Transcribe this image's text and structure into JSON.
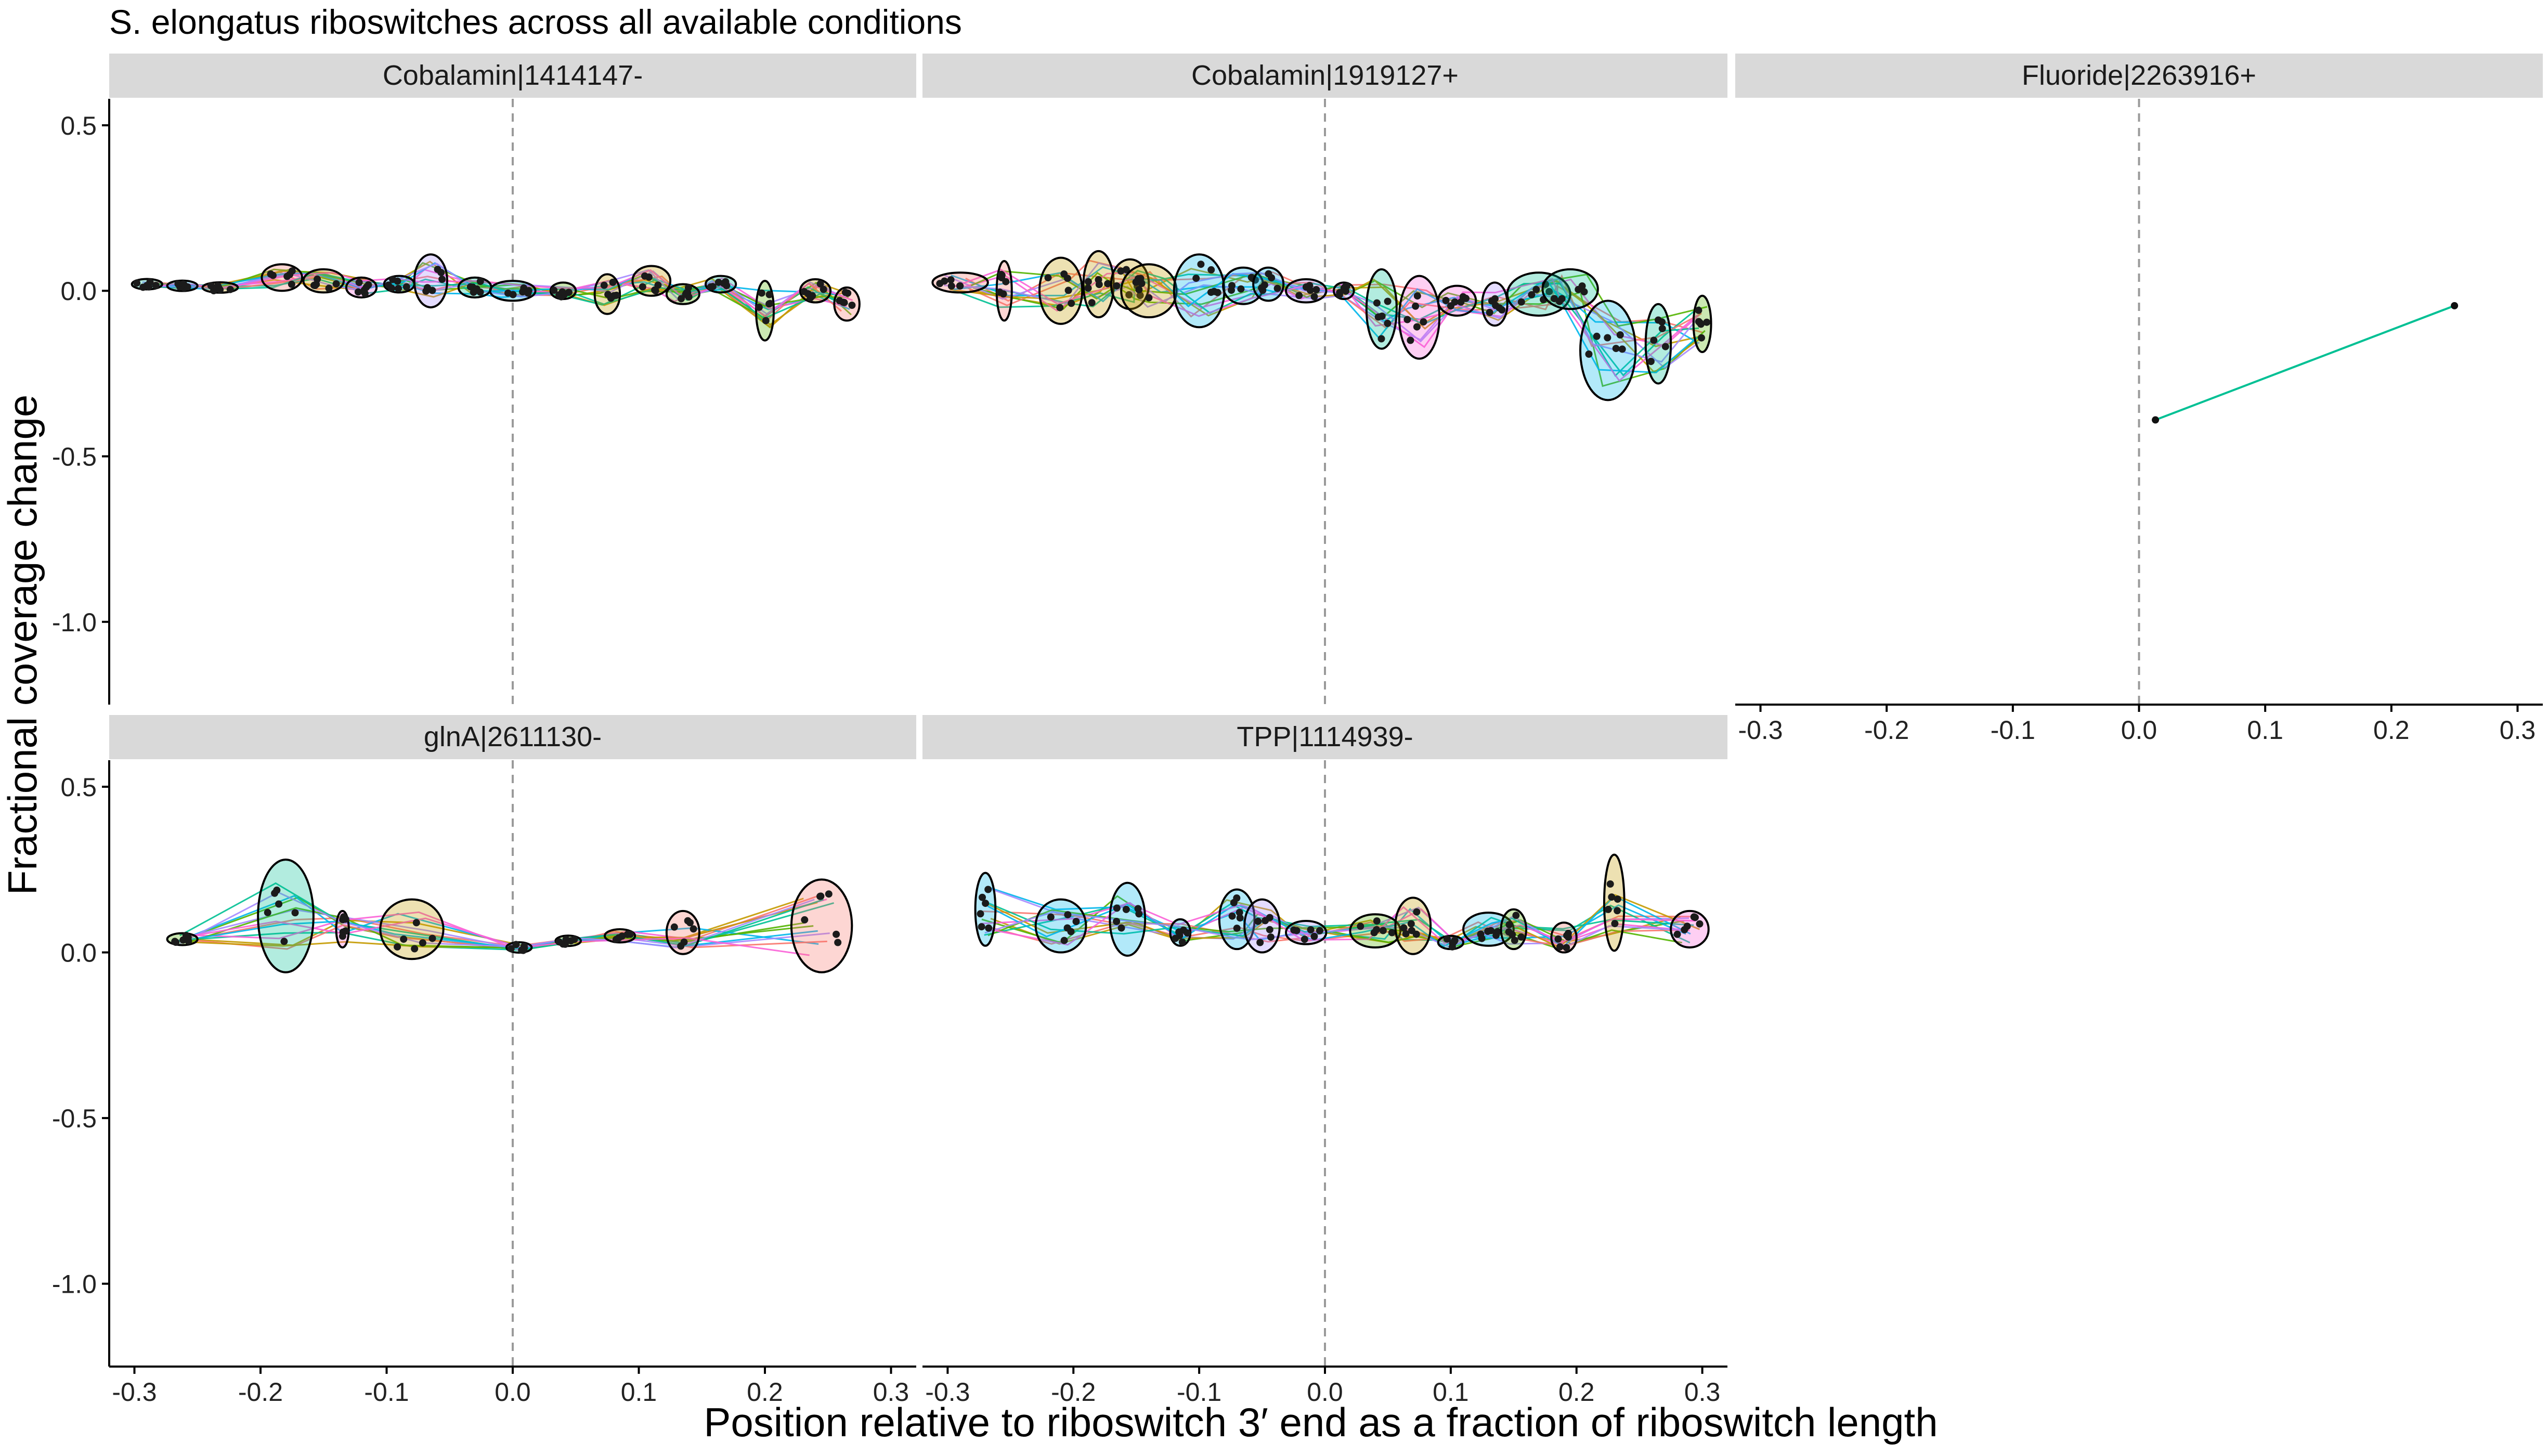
{
  "chart_data": {
    "type": "scatter",
    "title": "S. elongatus riboswitches across all available conditions",
    "xlabel": "Position relative to riboswitch 3′ end as a fraction of riboswitch length",
    "ylabel": "Fractional coverage change",
    "xlim": [
      -0.32,
      0.32
    ],
    "ylim": [
      -1.25,
      0.58
    ],
    "x_ticks": [
      -0.3,
      -0.2,
      -0.1,
      0.0,
      0.1,
      0.2,
      0.3
    ],
    "y_ticks": [
      0.5,
      0.0,
      -0.5,
      -1.0
    ],
    "x_tick_labels": [
      "-0.3",
      "-0.2",
      "-0.1",
      "0.0",
      "0.1",
      "0.2",
      "0.3"
    ],
    "y_tick_labels": [
      "0.5",
      "0.0",
      "-0.5",
      "-1.0"
    ],
    "reference_line_x": 0.0,
    "grid": false,
    "legend": "none",
    "line_palette": [
      "#F8766D",
      "#C49A00",
      "#53B400",
      "#00C094",
      "#00B6EB",
      "#A58AFF",
      "#FB61D7"
    ],
    "ellipse_alpha": 0.3,
    "panels": [
      {
        "strip": "Cobalamin|1414147-",
        "ellipses": [
          {
            "x": -0.29,
            "y": 0.02,
            "rx": 0.012,
            "ry": 0.01,
            "fill": "#00C094"
          },
          {
            "x": -0.262,
            "y": 0.015,
            "rx": 0.012,
            "ry": 0.012,
            "fill": "#00B6EB"
          },
          {
            "x": -0.232,
            "y": 0.01,
            "rx": 0.014,
            "ry": 0.01,
            "fill": "#C49A00"
          },
          {
            "x": -0.183,
            "y": 0.04,
            "rx": 0.016,
            "ry": 0.04,
            "fill": "#F8766D"
          },
          {
            "x": -0.15,
            "y": 0.03,
            "rx": 0.016,
            "ry": 0.035,
            "fill": "#C49A00"
          },
          {
            "x": -0.12,
            "y": 0.01,
            "rx": 0.012,
            "ry": 0.03,
            "fill": "#FB61D7"
          },
          {
            "x": -0.09,
            "y": 0.02,
            "rx": 0.012,
            "ry": 0.025,
            "fill": "#00B6EB"
          },
          {
            "x": -0.065,
            "y": 0.03,
            "rx": 0.013,
            "ry": 0.08,
            "fill": "#A58AFF"
          },
          {
            "x": -0.03,
            "y": 0.01,
            "rx": 0.013,
            "ry": 0.03,
            "fill": "#00C094"
          },
          {
            "x": 0.0,
            "y": 0.0,
            "rx": 0.018,
            "ry": 0.03,
            "fill": "#00B6EB"
          },
          {
            "x": 0.04,
            "y": 0.0,
            "rx": 0.01,
            "ry": 0.025,
            "fill": "#53B400"
          },
          {
            "x": 0.075,
            "y": -0.01,
            "rx": 0.01,
            "ry": 0.06,
            "fill": "#C49A00"
          },
          {
            "x": 0.11,
            "y": 0.03,
            "rx": 0.015,
            "ry": 0.045,
            "fill": "#C49A00"
          },
          {
            "x": 0.135,
            "y": -0.01,
            "rx": 0.013,
            "ry": 0.03,
            "fill": "#53B400"
          },
          {
            "x": 0.165,
            "y": 0.02,
            "rx": 0.012,
            "ry": 0.025,
            "fill": "#00C094"
          },
          {
            "x": 0.2,
            "y": -0.06,
            "rx": 0.007,
            "ry": 0.09,
            "fill": "#53B400"
          },
          {
            "x": 0.24,
            "y": 0.0,
            "rx": 0.012,
            "ry": 0.035,
            "fill": "#C49A00"
          },
          {
            "x": 0.265,
            "y": -0.04,
            "rx": 0.01,
            "ry": 0.05,
            "fill": "#F8766D"
          }
        ]
      },
      {
        "strip": "Cobalamin|1919127+",
        "ellipses": [
          {
            "x": -0.29,
            "y": 0.025,
            "rx": 0.022,
            "ry": 0.03,
            "fill": "#F8766D"
          },
          {
            "x": -0.255,
            "y": 0.0,
            "rx": 0.006,
            "ry": 0.09,
            "fill": "#F8766D"
          },
          {
            "x": -0.21,
            "y": 0.0,
            "rx": 0.017,
            "ry": 0.1,
            "fill": "#C49A00"
          },
          {
            "x": -0.18,
            "y": 0.02,
            "rx": 0.012,
            "ry": 0.1,
            "fill": "#C49A00"
          },
          {
            "x": -0.155,
            "y": 0.02,
            "rx": 0.015,
            "ry": 0.075,
            "fill": "#C49A00"
          },
          {
            "x": -0.14,
            "y": 0.0,
            "rx": 0.022,
            "ry": 0.08,
            "fill": "#C49A00"
          },
          {
            "x": -0.1,
            "y": 0.0,
            "rx": 0.02,
            "ry": 0.11,
            "fill": "#00B6EB"
          },
          {
            "x": -0.065,
            "y": 0.015,
            "rx": 0.016,
            "ry": 0.055,
            "fill": "#00B6EB"
          },
          {
            "x": -0.045,
            "y": 0.02,
            "rx": 0.012,
            "ry": 0.05,
            "fill": "#00B6EB"
          },
          {
            "x": -0.015,
            "y": 0.0,
            "rx": 0.016,
            "ry": 0.035,
            "fill": "#A58AFF"
          },
          {
            "x": 0.015,
            "y": 0.0,
            "rx": 0.008,
            "ry": 0.025,
            "fill": "#A58AFF"
          },
          {
            "x": 0.045,
            "y": -0.055,
            "rx": 0.012,
            "ry": 0.12,
            "fill": "#00C094"
          },
          {
            "x": 0.075,
            "y": -0.08,
            "rx": 0.016,
            "ry": 0.125,
            "fill": "#FB61D7"
          },
          {
            "x": 0.105,
            "y": -0.03,
            "rx": 0.015,
            "ry": 0.045,
            "fill": "#FB61D7"
          },
          {
            "x": 0.135,
            "y": -0.04,
            "rx": 0.01,
            "ry": 0.065,
            "fill": "#A58AFF"
          },
          {
            "x": 0.17,
            "y": -0.01,
            "rx": 0.025,
            "ry": 0.065,
            "fill": "#00C094"
          },
          {
            "x": 0.195,
            "y": 0.005,
            "rx": 0.022,
            "ry": 0.06,
            "fill": "#00C094"
          },
          {
            "x": 0.225,
            "y": -0.18,
            "rx": 0.022,
            "ry": 0.15,
            "fill": "#00B6EB"
          },
          {
            "x": 0.265,
            "y": -0.16,
            "rx": 0.01,
            "ry": 0.12,
            "fill": "#00C094"
          },
          {
            "x": 0.3,
            "y": -0.1,
            "rx": 0.007,
            "ry": 0.085,
            "fill": "#53B400"
          }
        ]
      },
      {
        "strip": "Fluoride|2263916+",
        "points": [
          [
            0.013,
            -0.39
          ],
          [
            0.25,
            -0.045
          ]
        ],
        "line_color": "#00C094"
      },
      {
        "strip": "glnA|2611130-",
        "ellipses": [
          {
            "x": -0.262,
            "y": 0.04,
            "rx": 0.012,
            "ry": 0.018,
            "fill": "#53B400"
          },
          {
            "x": -0.18,
            "y": 0.11,
            "rx": 0.022,
            "ry": 0.17,
            "fill": "#00C094"
          },
          {
            "x": -0.135,
            "y": 0.07,
            "rx": 0.005,
            "ry": 0.055,
            "fill": "#FB61D7"
          },
          {
            "x": -0.08,
            "y": 0.07,
            "rx": 0.025,
            "ry": 0.09,
            "fill": "#C49A00"
          },
          {
            "x": 0.005,
            "y": 0.015,
            "rx": 0.01,
            "ry": 0.01,
            "fill": "#00C094"
          },
          {
            "x": 0.044,
            "y": 0.035,
            "rx": 0.01,
            "ry": 0.01,
            "fill": "#53B400"
          },
          {
            "x": 0.085,
            "y": 0.05,
            "rx": 0.012,
            "ry": 0.02,
            "fill": "#C49A00"
          },
          {
            "x": 0.135,
            "y": 0.06,
            "rx": 0.013,
            "ry": 0.065,
            "fill": "#F8766D"
          },
          {
            "x": 0.245,
            "y": 0.08,
            "rx": 0.024,
            "ry": 0.14,
            "fill": "#F8766D"
          }
        ]
      },
      {
        "strip": "TPP|1114939-",
        "ellipses": [
          {
            "x": -0.27,
            "y": 0.13,
            "rx": 0.008,
            "ry": 0.11,
            "fill": "#00B6EB"
          },
          {
            "x": -0.21,
            "y": 0.08,
            "rx": 0.02,
            "ry": 0.08,
            "fill": "#00B6EB"
          },
          {
            "x": -0.157,
            "y": 0.1,
            "rx": 0.014,
            "ry": 0.11,
            "fill": "#00B6EB"
          },
          {
            "x": -0.115,
            "y": 0.06,
            "rx": 0.008,
            "ry": 0.04,
            "fill": "#00B6EB"
          },
          {
            "x": -0.07,
            "y": 0.1,
            "rx": 0.014,
            "ry": 0.09,
            "fill": "#00B6EB"
          },
          {
            "x": -0.05,
            "y": 0.08,
            "rx": 0.014,
            "ry": 0.08,
            "fill": "#A58AFF"
          },
          {
            "x": -0.015,
            "y": 0.06,
            "rx": 0.016,
            "ry": 0.035,
            "fill": "#A58AFF"
          },
          {
            "x": 0.04,
            "y": 0.065,
            "rx": 0.02,
            "ry": 0.05,
            "fill": "#53B400"
          },
          {
            "x": 0.07,
            "y": 0.08,
            "rx": 0.014,
            "ry": 0.085,
            "fill": "#C49A00"
          },
          {
            "x": 0.1,
            "y": 0.03,
            "rx": 0.01,
            "ry": 0.02,
            "fill": "#00C094"
          },
          {
            "x": 0.13,
            "y": 0.07,
            "rx": 0.02,
            "ry": 0.05,
            "fill": "#00B6EB"
          },
          {
            "x": 0.15,
            "y": 0.07,
            "rx": 0.01,
            "ry": 0.06,
            "fill": "#53B400"
          },
          {
            "x": 0.19,
            "y": 0.045,
            "rx": 0.01,
            "ry": 0.045,
            "fill": "#F8766D"
          },
          {
            "x": 0.23,
            "y": 0.15,
            "rx": 0.008,
            "ry": 0.145,
            "fill": "#C49A00"
          },
          {
            "x": 0.29,
            "y": 0.07,
            "rx": 0.015,
            "ry": 0.055,
            "fill": "#FB61D7"
          }
        ]
      }
    ]
  }
}
